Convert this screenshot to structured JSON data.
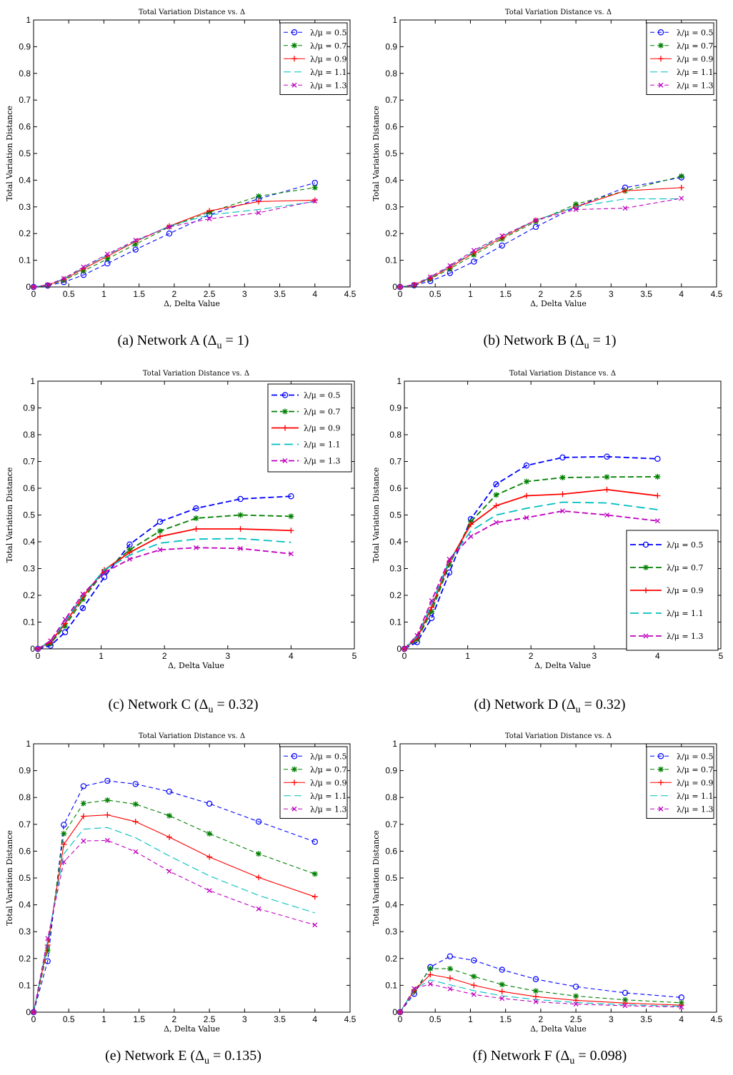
{
  "chart_data": [
    {
      "type": "line",
      "title": "Total Variation Distance vs. Δ",
      "xlabel": "Δ, Delta Value",
      "ylabel": "Total Variation Distance",
      "xlim": [
        0,
        4.5
      ],
      "ylim": [
        0,
        1
      ],
      "xticks": [
        "0",
        "0.5",
        "1",
        "1.5",
        "2",
        "2.5",
        "3",
        "3.5",
        "4",
        "4.5"
      ],
      "yticks": [
        "0",
        "0.1",
        "0.2",
        "0.3",
        "0.4",
        "0.5",
        "0.6",
        "0.7",
        "0.8",
        "0.9",
        "1"
      ],
      "legend_position": "top-right",
      "caption": {
        "prefix": "(a) Network A (Δ",
        "sub": "u",
        "suffix": " = 1)"
      },
      "x": [
        0,
        0.2,
        0.43,
        0.71,
        1.05,
        1.45,
        1.93,
        2.5,
        3.2,
        4.0
      ],
      "series": [
        {
          "name": "λ/μ = 0.5",
          "color": "#0000ff",
          "marker": "circle",
          "dash": "6,4",
          "values": [
            0,
            0.005,
            0.018,
            0.045,
            0.088,
            0.14,
            0.2,
            0.27,
            0.33,
            0.39
          ]
        },
        {
          "name": "λ/μ = 0.7",
          "color": "#008000",
          "marker": "star",
          "dash": "6,4",
          "values": [
            0,
            0.006,
            0.025,
            0.06,
            0.105,
            0.16,
            0.225,
            0.28,
            0.34,
            0.372
          ]
        },
        {
          "name": "λ/μ = 0.9",
          "color": "#ff0000",
          "marker": "plus",
          "dash": "",
          "values": [
            0,
            0.007,
            0.028,
            0.068,
            0.115,
            0.17,
            0.228,
            0.285,
            0.32,
            0.325
          ]
        },
        {
          "name": "λ/μ = 1.1",
          "color": "#00bfbf",
          "marker": "none",
          "dash": "10,5",
          "values": [
            0,
            0.008,
            0.03,
            0.072,
            0.12,
            0.172,
            0.228,
            0.27,
            0.29,
            0.32
          ]
        },
        {
          "name": "λ/μ = 1.3",
          "color": "#bf00bf",
          "marker": "x",
          "dash": "6,4",
          "values": [
            0,
            0.008,
            0.032,
            0.075,
            0.123,
            0.175,
            0.225,
            0.255,
            0.278,
            0.322
          ]
        }
      ]
    },
    {
      "type": "line",
      "title": "Total Variation Distance vs. Δ",
      "xlabel": "Δ, Delta Value",
      "ylabel": "Total Variation Distance",
      "xlim": [
        0,
        4.5
      ],
      "ylim": [
        0,
        1
      ],
      "xticks": [
        "0",
        "0.5",
        "1",
        "1.5",
        "2",
        "2.5",
        "3",
        "3.5",
        "4",
        "4.5"
      ],
      "yticks": [
        "0",
        "0.1",
        "0.2",
        "0.3",
        "0.4",
        "0.5",
        "0.6",
        "0.7",
        "0.8",
        "0.9",
        "1"
      ],
      "legend_position": "top-right",
      "caption": {
        "prefix": "(b) Network B (Δ",
        "sub": "u",
        "suffix": " = 1)"
      },
      "x": [
        0,
        0.2,
        0.43,
        0.71,
        1.05,
        1.45,
        1.93,
        2.5,
        3.2,
        4.0
      ],
      "series": [
        {
          "name": "λ/μ = 0.5",
          "color": "#0000ff",
          "marker": "circle",
          "dash": "6,4",
          "values": [
            0,
            0.006,
            0.022,
            0.052,
            0.095,
            0.155,
            0.225,
            0.3,
            0.372,
            0.41
          ]
        },
        {
          "name": "λ/μ = 0.7",
          "color": "#008000",
          "marker": "star",
          "dash": "6,4",
          "values": [
            0,
            0.007,
            0.03,
            0.068,
            0.12,
            0.18,
            0.245,
            0.31,
            0.36,
            0.415
          ]
        },
        {
          "name": "λ/μ = 0.9",
          "color": "#ff0000",
          "marker": "plus",
          "dash": "",
          "values": [
            0,
            0.008,
            0.033,
            0.074,
            0.128,
            0.185,
            0.25,
            0.3,
            0.36,
            0.372
          ]
        },
        {
          "name": "λ/μ = 1.1",
          "color": "#00bfbf",
          "marker": "none",
          "dash": "10,5",
          "values": [
            0,
            0.008,
            0.036,
            0.078,
            0.132,
            0.19,
            0.25,
            0.3,
            0.33,
            0.33
          ]
        },
        {
          "name": "λ/μ = 1.3",
          "color": "#bf00bf",
          "marker": "x",
          "dash": "6,4",
          "values": [
            0,
            0.009,
            0.038,
            0.08,
            0.137,
            0.192,
            0.25,
            0.29,
            0.295,
            0.332
          ]
        }
      ]
    },
    {
      "type": "line",
      "title": "Total Variation Distance vs. Δ",
      "xlabel": "Δ, Delta Value",
      "ylabel": "Total Variation Distance",
      "xlim": [
        0,
        5
      ],
      "ylim": [
        0,
        1
      ],
      "xticks": [
        "0",
        "1",
        "2",
        "3",
        "4",
        "5"
      ],
      "yticks": [
        "0",
        "0.1",
        "0.2",
        "0.3",
        "0.4",
        "0.5",
        "0.6",
        "0.7",
        "0.8",
        "0.9",
        "1"
      ],
      "legend_position": "top-right",
      "caption": {
        "prefix": "(c) Network C (Δ",
        "sub": "u",
        "suffix": " = 0.32)"
      },
      "x": [
        0,
        0.2,
        0.43,
        0.71,
        1.05,
        1.45,
        1.93,
        2.5,
        3.2,
        4.0
      ],
      "series": [
        {
          "name": "λ/μ = 0.5",
          "color": "#0000ff",
          "marker": "circle",
          "dash": "8,4",
          "values": [
            0,
            0.012,
            0.062,
            0.152,
            0.268,
            0.39,
            0.475,
            0.525,
            0.56,
            0.57
          ]
        },
        {
          "name": "λ/μ = 0.7",
          "color": "#008000",
          "marker": "star",
          "dash": "8,4",
          "values": [
            0,
            0.02,
            0.085,
            0.185,
            0.29,
            0.37,
            0.44,
            0.488,
            0.5,
            0.495
          ]
        },
        {
          "name": "λ/μ = 0.9",
          "color": "#ff0000",
          "marker": "plus",
          "dash": "",
          "values": [
            0,
            0.025,
            0.095,
            0.195,
            0.295,
            0.36,
            0.42,
            0.448,
            0.448,
            0.442
          ]
        },
        {
          "name": "λ/μ = 1.1",
          "color": "#00bfbf",
          "marker": "none",
          "dash": "12,6",
          "values": [
            0,
            0.028,
            0.1,
            0.2,
            0.295,
            0.35,
            0.395,
            0.41,
            0.412,
            0.398
          ]
        },
        {
          "name": "λ/μ = 1.3",
          "color": "#bf00bf",
          "marker": "x",
          "dash": "8,4",
          "values": [
            0,
            0.03,
            0.11,
            0.205,
            0.285,
            0.335,
            0.37,
            0.378,
            0.375,
            0.355
          ]
        }
      ]
    },
    {
      "type": "line",
      "title": "Total Variation Distance vs. Δ",
      "xlabel": "Δ, Delta Value",
      "ylabel": "Total Variation Distance",
      "xlim": [
        0,
        5
      ],
      "ylim": [
        0,
        1
      ],
      "xticks": [
        "0",
        "1",
        "2",
        "3",
        "4",
        "5"
      ],
      "yticks": [
        "0",
        "0.1",
        "0.2",
        "0.3",
        "0.4",
        "0.5",
        "0.6",
        "0.7",
        "0.8",
        "0.9",
        "1"
      ],
      "legend_position": "bottom-right",
      "caption": {
        "prefix": "(d) Network D (Δ",
        "sub": "u",
        "suffix": " = 0.32)"
      },
      "x": [
        0,
        0.2,
        0.43,
        0.71,
        1.05,
        1.45,
        1.93,
        2.5,
        3.2,
        4.0
      ],
      "series": [
        {
          "name": "λ/μ = 0.5",
          "color": "#0000ff",
          "marker": "circle",
          "dash": "8,4",
          "values": [
            0,
            0.025,
            0.115,
            0.285,
            0.485,
            0.615,
            0.685,
            0.715,
            0.718,
            0.71
          ]
        },
        {
          "name": "λ/μ = 0.7",
          "color": "#008000",
          "marker": "star",
          "dash": "8,4",
          "values": [
            0,
            0.035,
            0.14,
            0.315,
            0.475,
            0.575,
            0.625,
            0.64,
            0.642,
            0.643
          ]
        },
        {
          "name": "λ/μ = 0.9",
          "color": "#ff0000",
          "marker": "plus",
          "dash": "",
          "values": [
            0,
            0.04,
            0.155,
            0.325,
            0.465,
            0.535,
            0.572,
            0.578,
            0.595,
            0.572
          ]
        },
        {
          "name": "λ/μ = 1.1",
          "color": "#00bfbf",
          "marker": "none",
          "dash": "12,6",
          "values": [
            0,
            0.045,
            0.165,
            0.33,
            0.44,
            0.5,
            0.525,
            0.548,
            0.545,
            0.52
          ]
        },
        {
          "name": "λ/μ = 1.3",
          "color": "#bf00bf",
          "marker": "x",
          "dash": "8,4",
          "values": [
            0,
            0.05,
            0.18,
            0.335,
            0.42,
            0.472,
            0.49,
            0.515,
            0.5,
            0.478
          ]
        }
      ]
    },
    {
      "type": "line",
      "title": "Total Variation Distance vs. Δ",
      "xlabel": "Δ, Delta Value",
      "ylabel": "Total Variation Distance",
      "xlim": [
        0,
        4.5
      ],
      "ylim": [
        0,
        1
      ],
      "xticks": [
        "0",
        "0.5",
        "1",
        "1.5",
        "2",
        "2.5",
        "3",
        "3.5",
        "4",
        "4.5"
      ],
      "yticks": [
        "0",
        "0.1",
        "0.2",
        "0.3",
        "0.4",
        "0.5",
        "0.6",
        "0.7",
        "0.8",
        "0.9",
        "1"
      ],
      "legend_position": "top-right",
      "caption": {
        "prefix": "(e) Network E (Δ",
        "sub": "u",
        "suffix": " = 0.135)"
      },
      "x": [
        0,
        0.2,
        0.43,
        0.71,
        1.05,
        1.45,
        1.93,
        2.5,
        3.2,
        4.0
      ],
      "series": [
        {
          "name": "λ/μ = 0.5",
          "color": "#0000ff",
          "marker": "circle",
          "dash": "6,4",
          "values": [
            0,
            0.19,
            0.698,
            0.842,
            0.862,
            0.85,
            0.822,
            0.777,
            0.71,
            0.635
          ]
        },
        {
          "name": "λ/μ = 0.7",
          "color": "#008000",
          "marker": "star",
          "dash": "6,4",
          "values": [
            0,
            0.23,
            0.665,
            0.778,
            0.79,
            0.775,
            0.732,
            0.665,
            0.59,
            0.515
          ]
        },
        {
          "name": "λ/μ = 0.9",
          "color": "#ff0000",
          "marker": "plus",
          "dash": "",
          "values": [
            0,
            0.25,
            0.625,
            0.73,
            0.735,
            0.71,
            0.652,
            0.578,
            0.502,
            0.43
          ]
        },
        {
          "name": "λ/μ = 1.1",
          "color": "#00bfbf",
          "marker": "none",
          "dash": "10,5",
          "values": [
            0,
            0.265,
            0.59,
            0.682,
            0.688,
            0.65,
            0.582,
            0.508,
            0.435,
            0.37
          ]
        },
        {
          "name": "λ/μ = 1.3",
          "color": "#bf00bf",
          "marker": "x",
          "dash": "6,4",
          "values": [
            0,
            0.275,
            0.56,
            0.638,
            0.64,
            0.598,
            0.525,
            0.453,
            0.385,
            0.325
          ]
        }
      ]
    },
    {
      "type": "line",
      "title": "Total Variation Distance vs. Δ",
      "xlabel": "Δ, Delta Value",
      "ylabel": "Total Variation Distance",
      "xlim": [
        0,
        4.5
      ],
      "ylim": [
        0,
        1
      ],
      "xticks": [
        "0",
        "0.5",
        "1",
        "1.5",
        "2",
        "2.5",
        "3",
        "3.5",
        "4",
        "4.5"
      ],
      "yticks": [
        "0",
        "0.1",
        "0.2",
        "0.3",
        "0.4",
        "0.5",
        "0.6",
        "0.7",
        "0.8",
        "0.9",
        "1"
      ],
      "legend_position": "top-right",
      "caption": {
        "prefix": "(f) Network F (Δ",
        "sub": "u",
        "suffix": " = 0.098)"
      },
      "x": [
        0,
        0.2,
        0.43,
        0.71,
        1.05,
        1.45,
        1.93,
        2.5,
        3.2,
        4.0
      ],
      "series": [
        {
          "name": "λ/μ = 0.5",
          "color": "#0000ff",
          "marker": "circle",
          "dash": "6,4",
          "values": [
            0,
            0.068,
            0.168,
            0.208,
            0.193,
            0.158,
            0.123,
            0.095,
            0.072,
            0.055
          ]
        },
        {
          "name": "λ/μ = 0.7",
          "color": "#008000",
          "marker": "star",
          "dash": "6,4",
          "values": [
            0,
            0.078,
            0.162,
            0.162,
            0.133,
            0.103,
            0.079,
            0.06,
            0.046,
            0.035
          ]
        },
        {
          "name": "λ/μ = 0.9",
          "color": "#ff0000",
          "marker": "plus",
          "dash": "",
          "values": [
            0,
            0.082,
            0.14,
            0.127,
            0.1,
            0.077,
            0.058,
            0.044,
            0.034,
            0.026
          ]
        },
        {
          "name": "λ/μ = 1.1",
          "color": "#00bfbf",
          "marker": "none",
          "dash": "10,5",
          "values": [
            0,
            0.085,
            0.12,
            0.102,
            0.08,
            0.061,
            0.047,
            0.036,
            0.028,
            0.022
          ]
        },
        {
          "name": "λ/μ = 1.3",
          "color": "#bf00bf",
          "marker": "x",
          "dash": "6,4",
          "values": [
            0,
            0.088,
            0.105,
            0.087,
            0.066,
            0.051,
            0.039,
            0.03,
            0.024,
            0.019
          ]
        }
      ]
    }
  ]
}
